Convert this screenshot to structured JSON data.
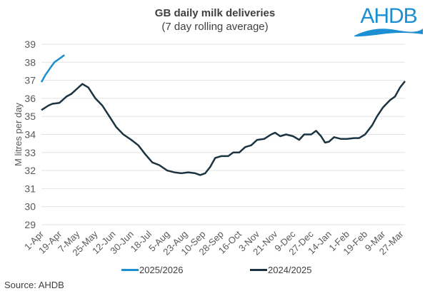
{
  "chart_data": {
    "type": "line",
    "title": "GB daily milk deliveries",
    "subtitle": "(7 day rolling average)",
    "ylabel": "M litres per day",
    "xlabel": "",
    "ylim": [
      29,
      39
    ],
    "yticks": [
      29,
      30,
      31,
      32,
      33,
      34,
      35,
      36,
      37,
      38,
      39
    ],
    "xticks": [
      "1-Apr",
      "19-Apr",
      "7-May",
      "25-May",
      "12-Jun",
      "30-Jun",
      "18-Jul",
      "5-Aug",
      "23-Aug",
      "10-Sep",
      "28-Sep",
      "16-Oct",
      "3-Nov",
      "21-Nov",
      "9-Dec",
      "27-Dec",
      "14-Jan",
      "1-Feb",
      "19-Feb",
      "9-Mar",
      "27-Mar"
    ],
    "xrange": [
      "1-Apr",
      "31-Mar"
    ],
    "grid": "horizontal",
    "legend_position": "bottom",
    "series": [
      {
        "name": "2025/2026",
        "color": "#1b8fd2",
        "x": [
          "1-Apr",
          "5-Apr",
          "10-Apr",
          "14-Apr",
          "19-Apr",
          "24-Apr"
        ],
        "values": [
          36.9,
          37.3,
          37.7,
          38.0,
          38.2,
          38.4
        ]
      },
      {
        "name": "2024/2025",
        "color": "#1c3441",
        "x": [
          "1-Apr",
          "8-Apr",
          "12-Apr",
          "19-Apr",
          "26-Apr",
          "1-May",
          "7-May",
          "12-May",
          "18-May",
          "25-May",
          "1-Jun",
          "8-Jun",
          "15-Jun",
          "22-Jun",
          "30-Jun",
          "7-Jul",
          "14-Jul",
          "21-Jul",
          "28-Jul",
          "5-Aug",
          "12-Aug",
          "19-Aug",
          "26-Aug",
          "2-Sep",
          "7-Sep",
          "12-Sep",
          "17-Sep",
          "22-Sep",
          "28-Sep",
          "5-Oct",
          "10-Oct",
          "16-Oct",
          "22-Oct",
          "28-Oct",
          "3-Nov",
          "10-Nov",
          "17-Nov",
          "21-Nov",
          "26-Nov",
          "2-Dec",
          "9-Dec",
          "15-Dec",
          "20-Dec",
          "27-Dec",
          "1-Jan",
          "6-Jan",
          "10-Jan",
          "14-Jan",
          "19-Jan",
          "26-Jan",
          "1-Feb",
          "8-Feb",
          "13-Feb",
          "19-Feb",
          "26-Feb",
          "3-Mar",
          "9-Mar",
          "16-Mar",
          "21-Mar",
          "26-Mar",
          "31-Mar"
        ],
        "values": [
          35.35,
          35.6,
          35.7,
          35.75,
          36.1,
          36.25,
          36.55,
          36.8,
          36.6,
          36.0,
          35.6,
          35.0,
          34.4,
          34.0,
          33.7,
          33.4,
          32.9,
          32.45,
          32.3,
          32.0,
          31.9,
          31.85,
          31.9,
          31.85,
          31.75,
          31.85,
          32.2,
          32.7,
          32.8,
          32.8,
          33.0,
          33.0,
          33.3,
          33.4,
          33.7,
          33.75,
          34.0,
          34.1,
          33.9,
          34.0,
          33.9,
          33.7,
          34.0,
          34.0,
          34.2,
          33.9,
          33.55,
          33.6,
          33.85,
          33.75,
          33.75,
          33.8,
          33.8,
          34.0,
          34.5,
          35.0,
          35.5,
          35.9,
          36.1,
          36.6,
          36.95
        ]
      }
    ],
    "source": "Source: AHDB"
  },
  "logo": {
    "text": "AHDB",
    "color": "#1b8fd2"
  }
}
